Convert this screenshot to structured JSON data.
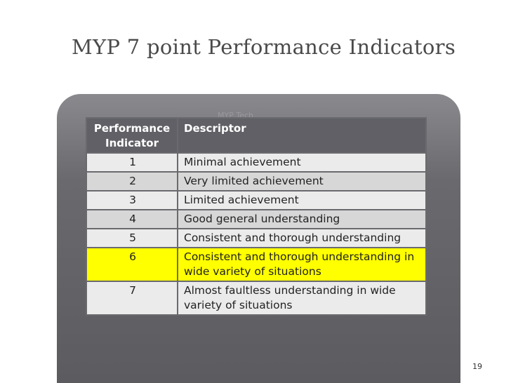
{
  "slide": {
    "title": "MYP 7 point Performance Indicators",
    "page_number": "19",
    "ghost_text": "MYP Tech."
  },
  "table": {
    "headers": [
      "Performance Indicator",
      "Descriptor"
    ],
    "rows": [
      {
        "indicator": "1",
        "descriptor": "Minimal achievement"
      },
      {
        "indicator": "2",
        "descriptor": "Very limited achievement"
      },
      {
        "indicator": "3",
        "descriptor": "Limited achievement"
      },
      {
        "indicator": "4",
        "descriptor": "Good general understanding"
      },
      {
        "indicator": "5",
        "descriptor": "Consistent and thorough understanding"
      },
      {
        "indicator": "6",
        "descriptor": "Consistent and thorough understanding in wide variety of situations",
        "highlighted": true
      },
      {
        "indicator": "7",
        "descriptor": "Almost faultless understanding in wide variety of situations"
      }
    ]
  },
  "colors": {
    "highlight": "#ffff00",
    "header_bg": "#606066",
    "row_light": "#ebebeb",
    "row_mid": "#d7d7d7",
    "panel": "#6a6a6e",
    "title_text": "#4a4a4a"
  }
}
